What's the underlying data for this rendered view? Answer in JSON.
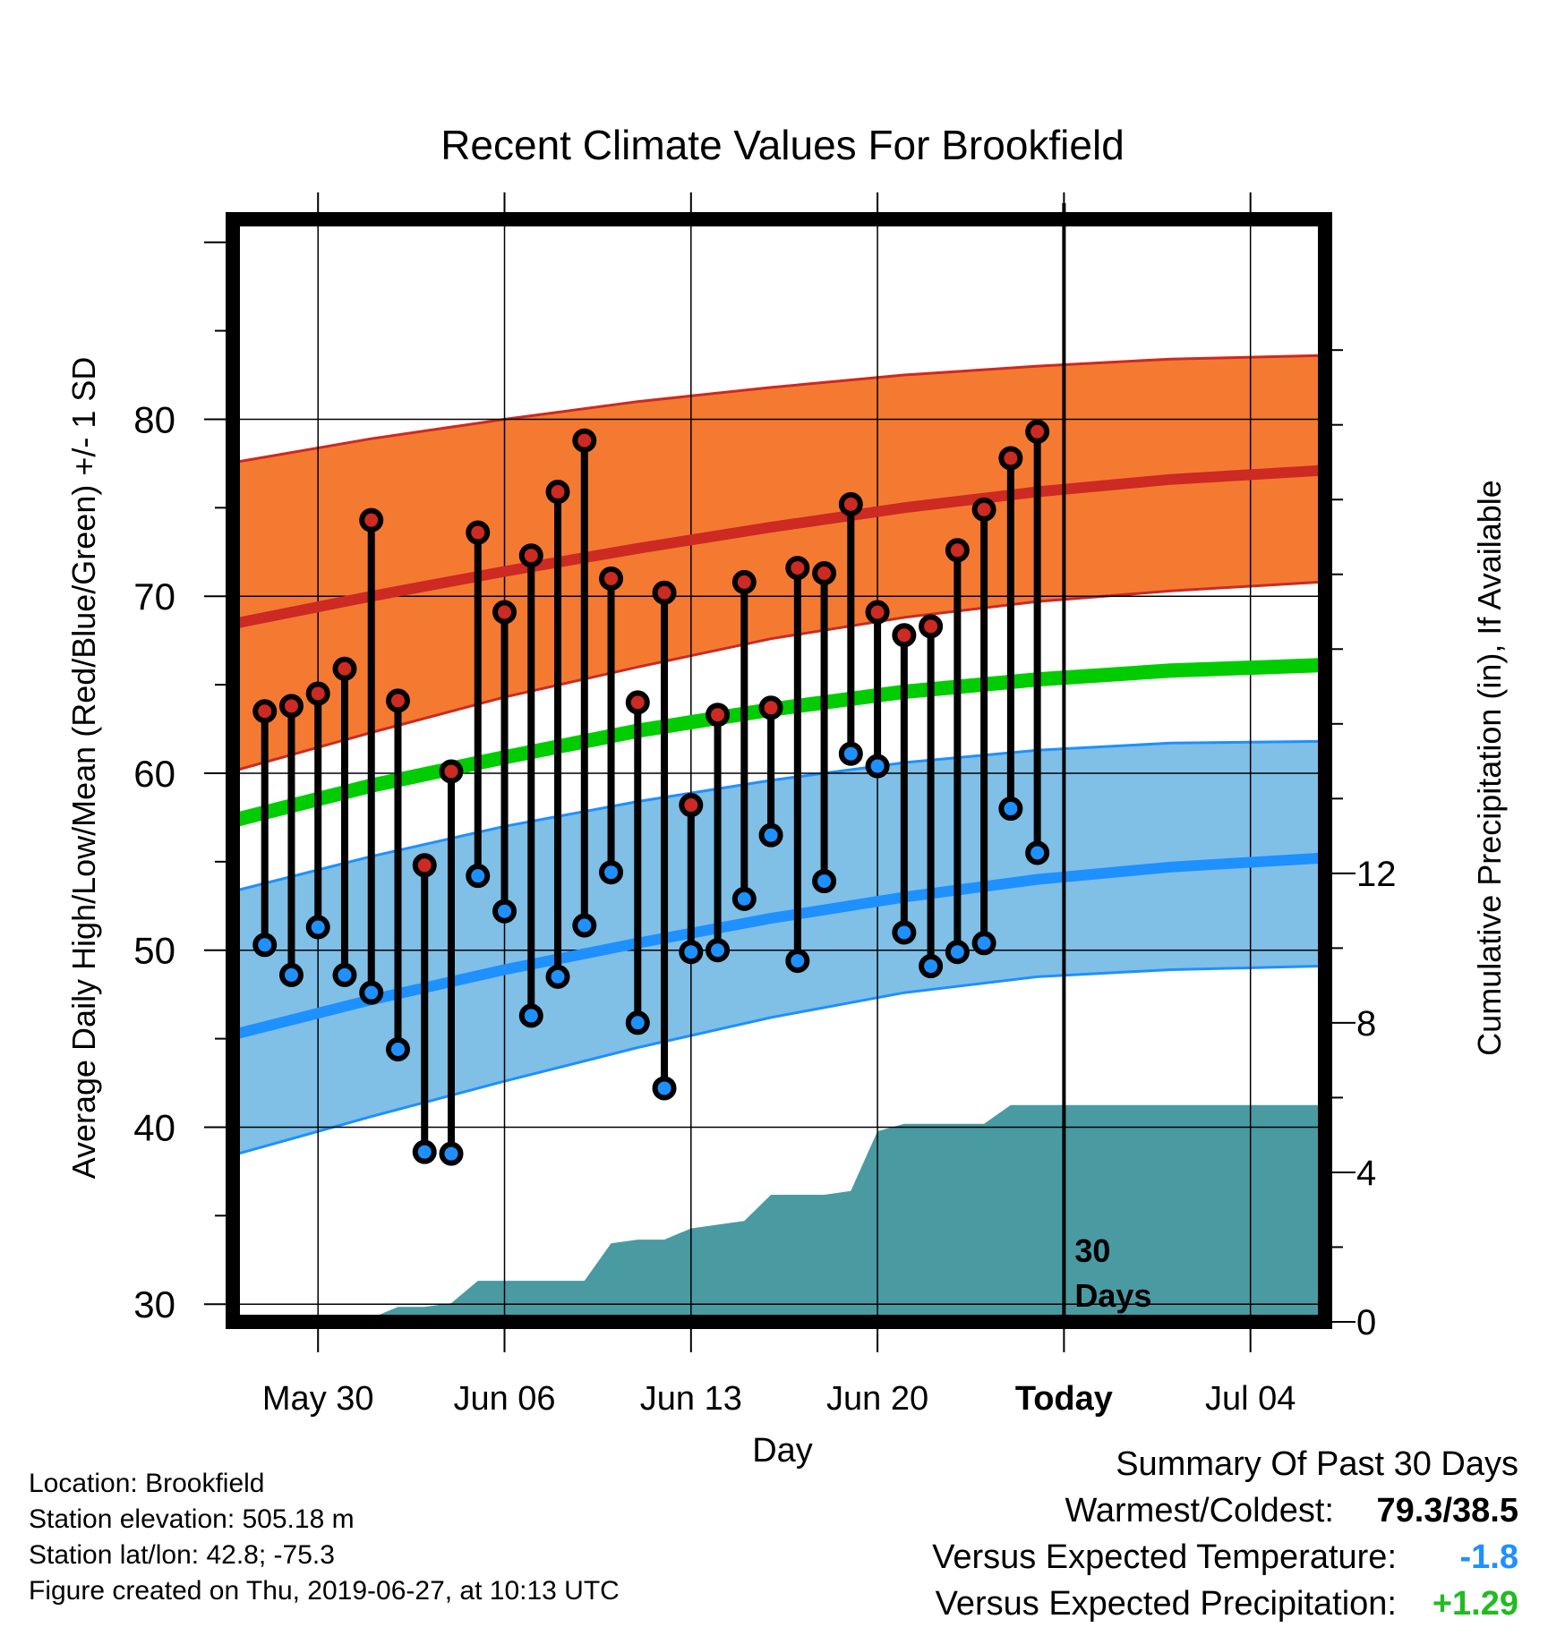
{
  "chart_data": {
    "type": "line",
    "title": "Recent Climate Values For Brookfield",
    "xlabel": "Day",
    "ylabel": "Average Daily High/Low/Mean (Red/Blue/Green) +/- 1 SD",
    "y2label": "Cumulative Precipitation (in), If Available",
    "x_tick_labels": [
      "May 30",
      "Jun 06",
      "Jun 13",
      "Jun 20",
      "Today",
      "Jul 04"
    ],
    "x_tick_days": [
      3,
      10,
      17,
      24,
      31,
      38
    ],
    "y_ticks": [
      30,
      40,
      50,
      60,
      70,
      80
    ],
    "y2_ticks": [
      0,
      4,
      8,
      12
    ],
    "ylim": [
      29,
      91.3
    ],
    "y2lim": [
      0,
      29.5
    ],
    "xlim": [
      -0.2,
      40.8
    ],
    "today_day": 31,
    "today_label": "30\nDays",
    "colors": {
      "high_band": "#f47a32",
      "high_line": "#cc2a22",
      "low_band": "#80bfe6",
      "low_line": "#1e90ff",
      "mean_line": "#00cc00",
      "precip": "#4a9aa2",
      "high_point": "#cc2a22",
      "low_point": "#1e90ff"
    },
    "normals": {
      "days": [
        0,
        5,
        10,
        15,
        20,
        25,
        30,
        35,
        40.6
      ],
      "high_mean": [
        68.5,
        70.0,
        71.4,
        72.7,
        73.9,
        75.0,
        75.9,
        76.6,
        77.1
      ],
      "high_upper": [
        77.6,
        78.9,
        80.0,
        81.0,
        81.8,
        82.5,
        83.0,
        83.4,
        83.6
      ],
      "high_lower": [
        60.2,
        62.3,
        64.3,
        66.0,
        67.6,
        68.8,
        69.7,
        70.3,
        70.8
      ],
      "low_mean": [
        45.3,
        47.2,
        48.9,
        50.4,
        51.8,
        53.0,
        54.0,
        54.7,
        55.2
      ],
      "low_upper": [
        53.4,
        55.3,
        57.0,
        58.4,
        59.6,
        60.6,
        61.3,
        61.7,
        61.8
      ],
      "low_lower": [
        38.5,
        40.6,
        42.6,
        44.5,
        46.2,
        47.6,
        48.5,
        48.9,
        49.1
      ],
      "daily_mean": [
        57.4,
        59.3,
        60.9,
        62.4,
        63.6,
        64.6,
        65.3,
        65.8,
        66.1
      ]
    },
    "series": [
      {
        "name": "High",
        "x": [
          1,
          2,
          3,
          4,
          5,
          6,
          7,
          8,
          9,
          10,
          11,
          12,
          13,
          14,
          15,
          16,
          17,
          18,
          19,
          20,
          21,
          22,
          23,
          24,
          25,
          26,
          27,
          28,
          29,
          30
        ],
        "values": [
          63.5,
          63.8,
          64.5,
          65.9,
          74.3,
          64.1,
          54.8,
          60.1,
          73.6,
          69.1,
          72.3,
          75.9,
          78.8,
          71.0,
          64.0,
          70.2,
          58.2,
          63.3,
          70.8,
          63.7,
          71.6,
          71.3,
          75.2,
          69.1,
          67.8,
          68.3,
          72.6,
          74.9,
          77.8,
          79.3
        ]
      },
      {
        "name": "Low",
        "x": [
          1,
          2,
          3,
          4,
          5,
          6,
          7,
          8,
          9,
          10,
          11,
          12,
          13,
          14,
          15,
          16,
          17,
          18,
          19,
          20,
          21,
          22,
          23,
          24,
          25,
          26,
          27,
          28,
          29,
          30
        ],
        "values": [
          50.3,
          48.6,
          51.3,
          48.6,
          47.6,
          44.4,
          38.6,
          38.5,
          54.2,
          52.2,
          46.3,
          48.5,
          51.4,
          54.4,
          45.9,
          42.2,
          49.9,
          50.0,
          52.9,
          56.5,
          49.4,
          53.9,
          61.1,
          60.4,
          51.0,
          49.1,
          49.9,
          50.4,
          58.0,
          55.5
        ]
      },
      {
        "name": "Cumulative Precipitation",
        "x": [
          0,
          1,
          5,
          6,
          7,
          8,
          9,
          13,
          14,
          15,
          16,
          17,
          18,
          19,
          20,
          21,
          22,
          23,
          24,
          25,
          26,
          27,
          28,
          29,
          40.6
        ],
        "values": [
          0.0,
          0.1,
          0.1,
          0.4,
          0.4,
          0.5,
          1.1,
          1.1,
          2.1,
          2.2,
          2.2,
          2.5,
          2.6,
          2.7,
          3.4,
          3.4,
          3.4,
          3.5,
          5.1,
          5.3,
          5.3,
          5.3,
          5.3,
          5.8,
          5.8
        ]
      }
    ]
  },
  "footer": {
    "location": "Location: Brookfield",
    "elevation": "Station elevation: 505.18 m",
    "latlon": "Station lat/lon: 42.8; -75.3",
    "created": "Figure created on Thu, 2019-06-27, at 10:13 UTC"
  },
  "summary": {
    "heading": "Summary Of Past 30 Days",
    "warm_cold_label": "Warmest/Coldest:",
    "warm_cold_value": "79.3/38.5",
    "temp_label": "Versus Expected Temperature:",
    "temp_value": "-1.8",
    "precip_label": "Versus Expected Precipitation:",
    "precip_value": "+1.29"
  }
}
